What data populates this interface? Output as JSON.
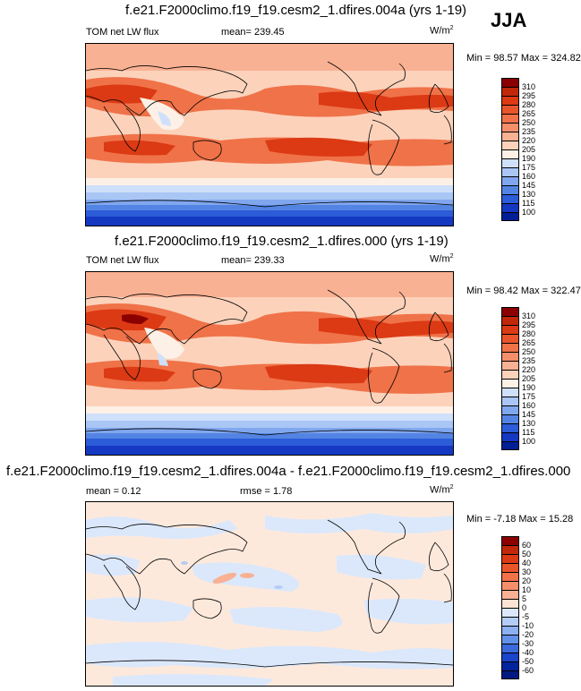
{
  "season": "JJA",
  "panels": [
    {
      "title": "f.e21.F2000climo.f19_f19.cesm2_1.dfires.004a (yrs 1-19)",
      "left_label": "TOM net LW flux",
      "center_label": "mean= 239.45",
      "units": "W/m",
      "units_exp": "2",
      "minmax": "Min =  98.57 Max = 324.82",
      "levels": [
        "310",
        "295",
        "280",
        "265",
        "250",
        "235",
        "220",
        "205",
        "190",
        "175",
        "160",
        "145",
        "130",
        "115",
        "100"
      ]
    },
    {
      "title": "f.e21.F2000climo.f19_f19.cesm2_1.dfires.000 (yrs 1-19)",
      "left_label": "TOM net LW flux",
      "center_label": "mean= 239.33",
      "units": "W/m",
      "units_exp": "2",
      "minmax": "Min =  98.42 Max = 322.47",
      "levels": [
        "310",
        "295",
        "280",
        "265",
        "250",
        "235",
        "220",
        "205",
        "190",
        "175",
        "160",
        "145",
        "130",
        "115",
        "100"
      ]
    },
    {
      "title": "f.e21.F2000climo.f19_f19.cesm2_1.dfires.004a - f.e21.F2000climo.f19_f19.cesm2_1.dfires.000",
      "left_label": "mean =   0.12",
      "center_label": "rmse =   1.78",
      "units": "W/m",
      "units_exp": "2",
      "minmax": "Min =  -7.18 Max =  15.28",
      "levels": [
        "60",
        "50",
        "40",
        "30",
        "20",
        "10",
        "5",
        "0",
        "-5",
        "-10",
        "-20",
        "-30",
        "-40",
        "-50",
        "-60"
      ]
    }
  ],
  "colors": {
    "abs_scale": [
      "#8b0000",
      "#c1280a",
      "#db3a14",
      "#e8552b",
      "#f07248",
      "#f58f6b",
      "#f9b193",
      "#fcd2bb",
      "#fdf0e6",
      "#cfe0fb",
      "#a9c6f5",
      "#80a7ee",
      "#5484e3",
      "#2c5cd8",
      "#1438c2",
      "#001e96"
    ],
    "diff_scale": [
      "#8b0000",
      "#c1280a",
      "#db3a14",
      "#e8552b",
      "#f07248",
      "#f58f6b",
      "#f9b193",
      "#fde3d3",
      "#dbe8fb",
      "#b4cdf6",
      "#8cb0f0",
      "#6390e8",
      "#3a6adc",
      "#1a44c9",
      "#04249e",
      "#001a80"
    ],
    "diff_base": "#fde9dc"
  },
  "chart_data": [
    {
      "type": "heatmap",
      "title": "f.e21.F2000climo.f19_f19.cesm2_1.dfires.004a (yrs 1-19)",
      "variable": "TOM net LW flux",
      "season": "JJA",
      "mean": 239.45,
      "min": 98.57,
      "max": 324.82,
      "contour_levels": [
        100,
        115,
        130,
        145,
        160,
        175,
        190,
        205,
        220,
        235,
        250,
        265,
        280,
        295,
        310
      ]
    },
    {
      "type": "heatmap",
      "title": "f.e21.F2000climo.f19_f19.cesm2_1.dfires.000 (yrs 1-19)",
      "variable": "TOM net LW flux",
      "season": "JJA",
      "mean": 239.33,
      "min": 98.42,
      "max": 322.47,
      "contour_levels": [
        100,
        115,
        130,
        145,
        160,
        175,
        190,
        205,
        220,
        235,
        250,
        265,
        280,
        295,
        310
      ]
    },
    {
      "type": "heatmap",
      "title": "f.e21.F2000climo.f19_f19.cesm2_1.dfires.004a - f.e21.F2000climo.f19_f19.cesm2_1.dfires.000",
      "variable": "difference",
      "season": "JJA",
      "mean": 0.12,
      "rmse": 1.78,
      "min": -7.18,
      "max": 15.28,
      "contour_levels": [
        -60,
        -50,
        -40,
        -30,
        -20,
        -10,
        -5,
        0,
        5,
        10,
        20,
        30,
        40,
        50,
        60
      ]
    }
  ]
}
